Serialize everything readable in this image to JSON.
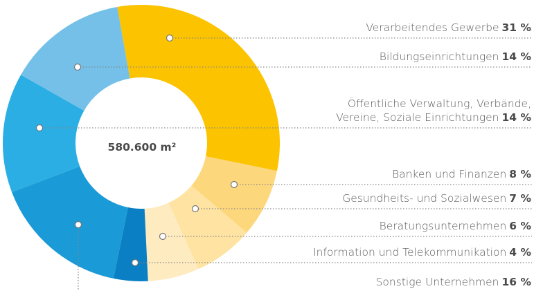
{
  "chart_data": {
    "type": "donut",
    "total_label": "580.600 m²",
    "categories": [
      "Verarbeitendes Gewerbe",
      "Banken und Finanzen",
      "Gesundheits- und Sozialwesen",
      "Beratungsunternehmen",
      "Information und Telekommunikation",
      "Sonstige Unternehmen",
      "Öffentliche Verwaltung, Verbände, Vereine, Soziale Einrichtungen",
      "Bildungseinrichtungen"
    ],
    "values": [
      31,
      8,
      7,
      6,
      4,
      16,
      14,
      14
    ],
    "value_labels": [
      "31 %",
      "8 %",
      "7 %",
      "6 %",
      "4 %",
      "16 %",
      "14 %",
      "14 %"
    ],
    "colors": [
      "#fcc300",
      "#fdd77b",
      "#fee3a3",
      "#feebc0",
      "#0a7fc4",
      "#1a9ad6",
      "#2aaee3",
      "#74c0e8"
    ]
  }
}
